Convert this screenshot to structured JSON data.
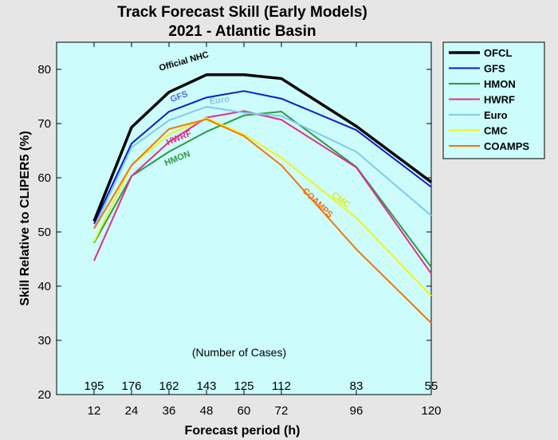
{
  "chart_data": {
    "type": "line",
    "title": "Track Forecast Skill (Early Models)",
    "subtitle": "2021 - Atlantic Basin",
    "xlabel": "Forecast period (h)",
    "ylabel": "Skill Relative to CLIPER5 (%)",
    "xlim": [
      0,
      120
    ],
    "ylim": [
      20,
      85
    ],
    "x": [
      12,
      24,
      36,
      48,
      60,
      72,
      96,
      120
    ],
    "yticks": [
      20,
      30,
      40,
      50,
      60,
      70,
      80
    ],
    "grid": false,
    "legend_position": "outside-top-right",
    "cases_label": "(Number of Cases)",
    "cases": [
      "195",
      "176",
      "162",
      "143",
      "125",
      "112",
      "83",
      "55"
    ],
    "series": [
      {
        "name": "OFCL",
        "color": "#000000",
        "width": 3.5,
        "values": [
          52,
          69.3,
          75.8,
          79,
          79,
          78.3,
          69.5,
          59.2
        ]
      },
      {
        "name": "GFS",
        "color": "#0b1bd6",
        "width": 2,
        "values": [
          51.5,
          66.3,
          72.2,
          74.8,
          76,
          74.6,
          68.8,
          58.3
        ]
      },
      {
        "name": "HMON",
        "color": "#2f9a3f",
        "width": 2,
        "values": [
          48,
          60.3,
          64.8,
          68.5,
          71.5,
          72.2,
          62,
          43.5
        ]
      },
      {
        "name": "HWRF",
        "color": "#e0308a",
        "width": 2,
        "values": [
          44.7,
          60.3,
          66.6,
          71.1,
          72.3,
          70.7,
          61.9,
          42.3
        ]
      },
      {
        "name": "Euro",
        "color": "#7fcbef",
        "width": 2,
        "values": [
          50.7,
          65.6,
          70.6,
          73.1,
          72,
          71.4,
          64.8,
          53
        ]
      },
      {
        "name": "CMC",
        "color": "#f2f21c",
        "width": 2,
        "values": [
          48.2,
          62.3,
          68,
          71,
          68,
          63.7,
          52.6,
          38.2
        ]
      },
      {
        "name": "COAMPS",
        "color": "#f2750b",
        "width": 2,
        "values": [
          50.6,
          62.3,
          69,
          70.8,
          67.7,
          62.3,
          46.8,
          33.2
        ]
      }
    ],
    "annotations": [
      {
        "text": "Official NHC",
        "color": "#000000",
        "x": 41,
        "y": 81,
        "rotate": -16
      },
      {
        "text": "GFS",
        "color": "#4f69e8",
        "x": 39.5,
        "y": 74.5,
        "rotate": -20
      },
      {
        "text": "Euro",
        "color": "#7fcbef",
        "x": 52.3,
        "y": 73.8,
        "rotate": -8
      },
      {
        "text": "HWRF",
        "color": "#e0308a",
        "x": 39.5,
        "y": 66.9,
        "rotate": -22
      },
      {
        "text": "HMON",
        "color": "#2f9a3f",
        "x": 39,
        "y": 63.1,
        "rotate": -22
      },
      {
        "text": "CMC",
        "color": "#e6e61a",
        "x": 90.5,
        "y": 55.5,
        "rotate": 36
      },
      {
        "text": "COAMPS",
        "color": "#f2750b",
        "x": 83,
        "y": 55,
        "rotate": 44
      }
    ]
  }
}
